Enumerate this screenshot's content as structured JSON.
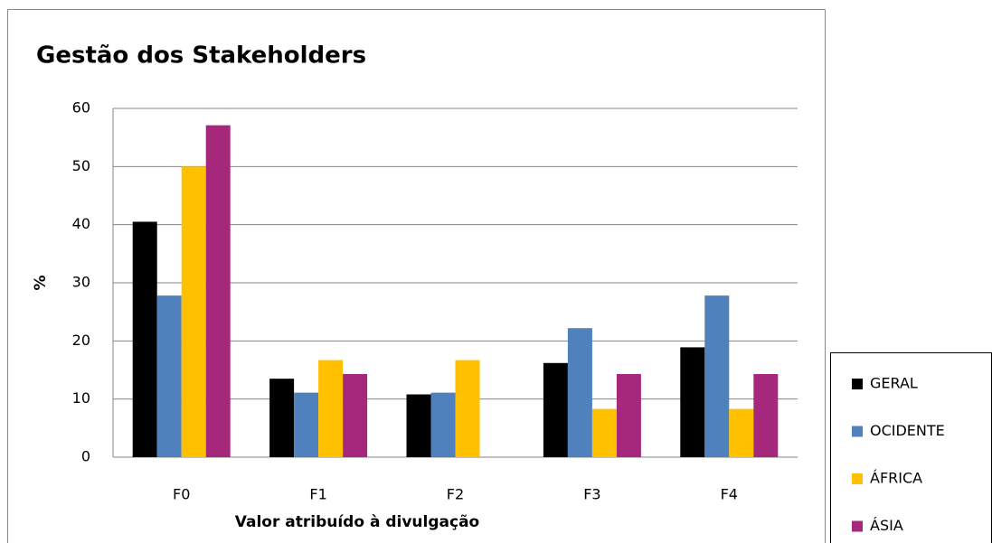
{
  "chart_data": {
    "type": "bar",
    "title": "Gestão dos Stakeholders",
    "x_label": "Valor atribuído à divulgação",
    "y_label": "%",
    "categories": [
      "F0",
      "F1",
      "F2",
      "F3",
      "F4"
    ],
    "series": [
      {
        "name": "GERAL",
        "color": "#000000",
        "values": [
          40.5,
          13.5,
          10.8,
          16.2,
          18.9
        ]
      },
      {
        "name": "OCIDENTE",
        "color": "#4f81bd",
        "values": [
          27.8,
          11.1,
          11.1,
          22.2,
          27.8
        ]
      },
      {
        "name": "ÁFRICA",
        "color": "#ffc000",
        "values": [
          50,
          16.7,
          16.7,
          8.3,
          8.3
        ]
      },
      {
        "name": "ÁSIA",
        "color": "#a6287c",
        "values": [
          57.1,
          14.3,
          0,
          14.3,
          14.3
        ]
      }
    ],
    "ylim": [
      0,
      60
    ],
    "yticks": [
      0,
      10,
      20,
      30,
      40,
      50,
      60
    ],
    "grid": true,
    "legend": "bottom-right"
  }
}
